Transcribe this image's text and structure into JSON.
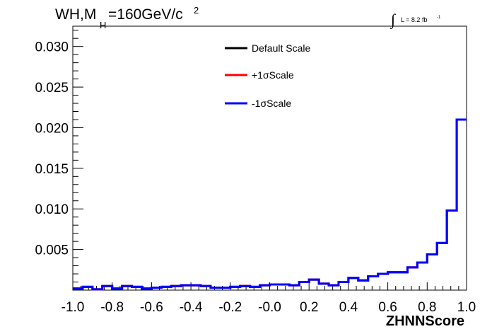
{
  "chart_data": {
    "type": "line",
    "title": {
      "main_a": "WH,M",
      "sub": "H",
      "main_b": "=160GeV/c",
      "sup": "2"
    },
    "luminosity": {
      "integral": "∫",
      "text": "L = 8.2 fb",
      "sup": "-1"
    },
    "xlabel": "ZHNNScore",
    "ylabel": "",
    "xlim": [
      -1.0,
      1.0
    ],
    "ylim": [
      0.0,
      0.0325
    ],
    "x_ticks": [
      -1.0,
      -0.8,
      -0.6,
      -0.4,
      -0.2,
      0.0,
      0.2,
      0.4,
      0.6,
      0.8,
      1.0
    ],
    "x_tick_labels": [
      "-1.0",
      "-0.8",
      "-0.6",
      "-0.4",
      "-0.2",
      "-0.0",
      "0.2",
      "0.4",
      "0.6",
      "0.8",
      "1.0"
    ],
    "y_ticks": [
      0.005,
      0.01,
      0.015,
      0.02,
      0.025,
      0.03
    ],
    "y_tick_labels": [
      "0.005",
      "0.010",
      "0.015",
      "0.020",
      "0.025",
      "0.030"
    ],
    "bin_edges": [
      -1.0,
      -0.95,
      -0.9,
      -0.85,
      -0.8,
      -0.75,
      -0.7,
      -0.65,
      -0.6,
      -0.55,
      -0.5,
      -0.45,
      -0.4,
      -0.35,
      -0.3,
      -0.25,
      -0.2,
      -0.15,
      -0.1,
      -0.05,
      0.0,
      0.05,
      0.1,
      0.15,
      0.2,
      0.25,
      0.3,
      0.35,
      0.4,
      0.45,
      0.5,
      0.55,
      0.6,
      0.65,
      0.7,
      0.75,
      0.8,
      0.85,
      0.9,
      0.95,
      1.0
    ],
    "legend_position": "top-center",
    "series": [
      {
        "name": "Default Scale",
        "color": "#000000",
        "values": [
          0.0002,
          0.0004,
          0.0001,
          0.0005,
          0.0002,
          0.0005,
          0.0004,
          0.0002,
          0.0003,
          0.0004,
          0.0005,
          0.0006,
          0.0006,
          0.0005,
          0.0003,
          0.0003,
          0.0004,
          0.0005,
          0.0004,
          0.0006,
          0.0007,
          0.0007,
          0.0006,
          0.001,
          0.0013,
          0.0008,
          0.0006,
          0.001,
          0.0015,
          0.0012,
          0.0017,
          0.002,
          0.0022,
          0.0022,
          0.0028,
          0.0034,
          0.0044,
          0.0058,
          0.0098,
          0.021
        ]
      },
      {
        "name": "+1σScale",
        "color": "#ff0000",
        "values": [
          0.0002,
          0.0004,
          0.0001,
          0.0005,
          0.0002,
          0.0005,
          0.0004,
          0.0002,
          0.0003,
          0.0004,
          0.0005,
          0.0006,
          0.0006,
          0.0005,
          0.0003,
          0.0003,
          0.0004,
          0.0005,
          0.0004,
          0.0006,
          0.0007,
          0.0007,
          0.0006,
          0.001,
          0.0013,
          0.0008,
          0.0006,
          0.001,
          0.0015,
          0.0012,
          0.0017,
          0.002,
          0.0022,
          0.0022,
          0.0028,
          0.0034,
          0.0044,
          0.0058,
          0.0098,
          0.021
        ]
      },
      {
        "name": "-1σScale",
        "color": "#0000ff",
        "values": [
          0.0002,
          0.0004,
          0.0001,
          0.0005,
          0.0002,
          0.0005,
          0.0004,
          0.0002,
          0.0003,
          0.0004,
          0.0005,
          0.0006,
          0.0006,
          0.0005,
          0.0003,
          0.0003,
          0.0004,
          0.0005,
          0.0004,
          0.0006,
          0.0007,
          0.0007,
          0.0006,
          0.001,
          0.0013,
          0.0008,
          0.0006,
          0.001,
          0.0015,
          0.0012,
          0.0017,
          0.002,
          0.0022,
          0.0022,
          0.0028,
          0.0034,
          0.0044,
          0.0058,
          0.0098,
          0.021
        ]
      }
    ]
  }
}
